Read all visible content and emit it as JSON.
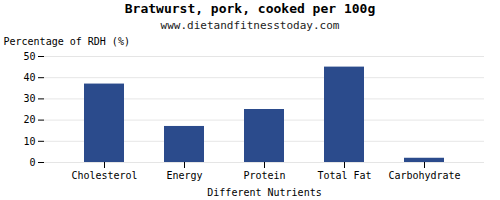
{
  "chart_data": {
    "type": "bar",
    "title": "Bratwurst, pork, cooked per 100g",
    "subtitle": "www.dietandfitnesstoday.com",
    "xlabel": "Different Nutrients",
    "ylabel": "Percentage of RDH (%)",
    "categories": [
      "Cholesterol",
      "Energy",
      "Protein",
      "Total Fat",
      "Carbohydrate"
    ],
    "values": [
      37,
      17,
      25,
      45,
      2
    ],
    "color": "#2b4b8c",
    "ylim": [
      0,
      50
    ],
    "yticks": [
      0,
      10,
      20,
      30,
      40,
      50
    ],
    "grid": true
  }
}
